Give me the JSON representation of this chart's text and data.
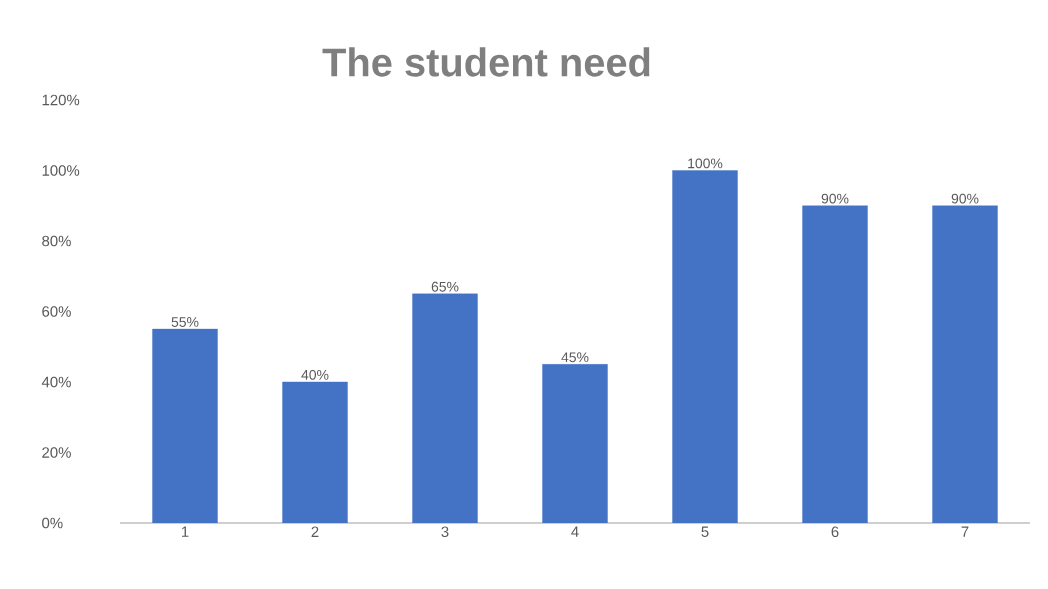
{
  "chart_data": {
    "type": "bar",
    "title": "The student need",
    "categories": [
      "1",
      "2",
      "3",
      "4",
      "5",
      "6",
      "7"
    ],
    "values": [
      55,
      40,
      65,
      45,
      100,
      90,
      90
    ],
    "value_labels": [
      "55%",
      "40%",
      "65%",
      "45%",
      "100%",
      "90%",
      "90%"
    ],
    "color": "#4472c4",
    "ylim": [
      0,
      120
    ],
    "yticks": [
      {
        "value": 0,
        "label": "0%"
      },
      {
        "value": 20,
        "label": "20%"
      },
      {
        "value": 40,
        "label": "40%"
      },
      {
        "value": 60,
        "label": "60%"
      },
      {
        "value": 80,
        "label": "80%"
      },
      {
        "value": 100,
        "label": "100%"
      },
      {
        "value": 120,
        "label": "120%"
      }
    ]
  }
}
